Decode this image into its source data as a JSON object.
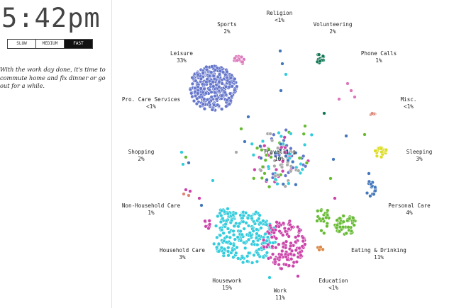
{
  "clock": {
    "time": "5:42pm"
  },
  "speed_controls": [
    {
      "label": "SLOW",
      "active": false
    },
    {
      "label": "MEDIUM",
      "active": false
    },
    {
      "label": "FAST",
      "active": true
    }
  ],
  "narration": "With the work day done, it's time to commute home and fix dinner or go out for a while.",
  "colors": {
    "leisure": "#6677cc",
    "sports": "#dd77bb",
    "volunteering": "#117755",
    "housework": "#33ccdd",
    "work": "#cc44aa",
    "eating": "#66bb33",
    "personal_care": "#4477bb",
    "sleeping": "#dddd22",
    "travelling": "#aaaaaa",
    "education": "#dd8844",
    "misc": "#dd8877"
  },
  "activities": [
    {
      "key": "religion",
      "name": "Religion",
      "pct": "<1%"
    },
    {
      "key": "volunteering",
      "name": "Volunteering",
      "pct": "2%"
    },
    {
      "key": "phone_calls",
      "name": "Phone Calls",
      "pct": "1%"
    },
    {
      "key": "misc",
      "name": "Misc.",
      "pct": "<1%"
    },
    {
      "key": "sleeping",
      "name": "Sleeping",
      "pct": "3%"
    },
    {
      "key": "personal_care",
      "name": "Personal Care",
      "pct": "4%"
    },
    {
      "key": "eating",
      "name": "Eating & Drinking",
      "pct": "11%"
    },
    {
      "key": "education",
      "name": "Education",
      "pct": "<1%"
    },
    {
      "key": "work",
      "name": "Work",
      "pct": "11%"
    },
    {
      "key": "housework",
      "name": "Housework",
      "pct": "15%"
    },
    {
      "key": "household_care",
      "name": "Household Care",
      "pct": "3%"
    },
    {
      "key": "non_household_care",
      "name": "Non-Household Care",
      "pct": "1%"
    },
    {
      "key": "shopping",
      "name": "Shopping",
      "pct": "2%"
    },
    {
      "key": "pro_care",
      "name": "Pro. Care Services",
      "pct": "<1%"
    },
    {
      "key": "leisure",
      "name": "Leisure",
      "pct": "33%"
    },
    {
      "key": "sports",
      "name": "Sports",
      "pct": "2%"
    },
    {
      "key": "travelling",
      "name": "Travelling",
      "pct": "10%"
    }
  ]
}
